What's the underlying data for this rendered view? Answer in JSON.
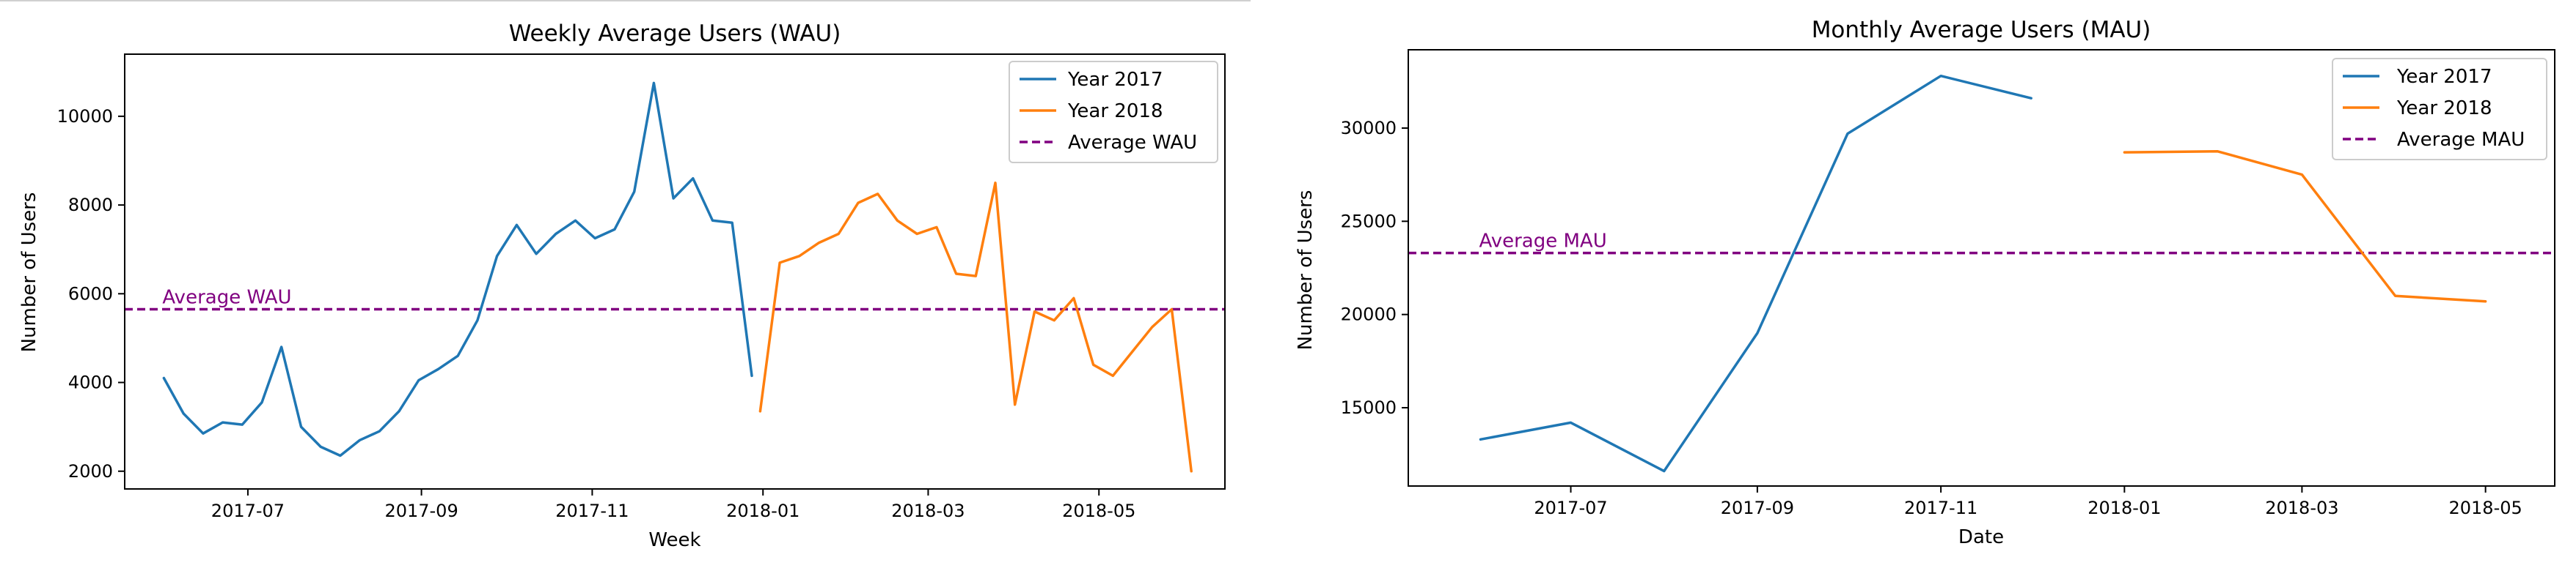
{
  "colors": {
    "year_2017": "#1f77b4",
    "year_2018": "#ff7f0e",
    "average": "#800080"
  },
  "chart_data": [
    {
      "type": "line",
      "title": "Weekly Average Users (WAU)",
      "xlabel": "Week",
      "ylabel": "Number of Users",
      "x_axis": "date",
      "xlim": [
        "2017-05-18",
        "2018-06-15"
      ],
      "ylim": [
        1600,
        11400
      ],
      "x_ticks": [
        {
          "date": "2017-07-01",
          "label": "2017-07"
        },
        {
          "date": "2017-09-01",
          "label": "2017-09"
        },
        {
          "date": "2017-11-01",
          "label": "2017-11"
        },
        {
          "date": "2018-01-01",
          "label": "2018-01"
        },
        {
          "date": "2018-03-01",
          "label": "2018-03"
        },
        {
          "date": "2018-05-01",
          "label": "2018-05"
        }
      ],
      "y_ticks": [
        2000,
        4000,
        6000,
        8000,
        10000
      ],
      "legend_position": "top-right",
      "series": [
        {
          "name": "Year 2017",
          "color": "#1f77b4",
          "x": [
            "2017-06-01",
            "2017-06-08",
            "2017-06-15",
            "2017-06-22",
            "2017-06-29",
            "2017-07-06",
            "2017-07-13",
            "2017-07-20",
            "2017-07-27",
            "2017-08-03",
            "2017-08-10",
            "2017-08-17",
            "2017-08-24",
            "2017-08-31",
            "2017-09-07",
            "2017-09-14",
            "2017-09-21",
            "2017-09-28",
            "2017-10-05",
            "2017-10-12",
            "2017-10-19",
            "2017-10-26",
            "2017-11-02",
            "2017-11-09",
            "2017-11-16",
            "2017-11-23",
            "2017-11-30",
            "2017-12-07",
            "2017-12-14",
            "2017-12-21",
            "2017-12-28"
          ],
          "values": [
            4100,
            3300,
            2850,
            3100,
            3050,
            3550,
            4800,
            3000,
            2550,
            2350,
            2700,
            2900,
            3350,
            4050,
            4300,
            4600,
            5400,
            6850,
            7550,
            6900,
            7350,
            7650,
            7250,
            7450,
            8300,
            10750,
            8150,
            8600,
            7650,
            7600,
            4150
          ]
        },
        {
          "name": "Year 2018",
          "color": "#ff7f0e",
          "x": [
            "2017-12-31",
            "2018-01-07",
            "2018-01-14",
            "2018-01-21",
            "2018-01-28",
            "2018-02-04",
            "2018-02-11",
            "2018-02-18",
            "2018-02-25",
            "2018-03-04",
            "2018-03-11",
            "2018-03-18",
            "2018-03-25",
            "2018-04-01",
            "2018-04-08",
            "2018-04-15",
            "2018-04-22",
            "2018-04-29",
            "2018-05-06",
            "2018-05-13",
            "2018-05-20",
            "2018-05-27",
            "2018-06-03"
          ],
          "values": [
            3350,
            6700,
            6850,
            7150,
            7350,
            8050,
            8250,
            7650,
            7350,
            7500,
            6450,
            6400,
            8500,
            3500,
            5600,
            5400,
            5900,
            4400,
            4150,
            4700,
            5250,
            5650,
            2000
          ]
        }
      ],
      "reference_line": {
        "name": "Average WAU",
        "value": 5650,
        "color": "#800080",
        "annotation": "Average WAU"
      }
    },
    {
      "type": "line",
      "title": "Monthly Average Users (MAU)",
      "xlabel": "Date",
      "ylabel": "Number of Users",
      "x_axis": "date",
      "xlim": [
        "2017-05-08",
        "2018-05-24"
      ],
      "ylim": [
        10800,
        34200
      ],
      "x_ticks": [
        {
          "date": "2017-07-01",
          "label": "2017-07"
        },
        {
          "date": "2017-09-01",
          "label": "2017-09"
        },
        {
          "date": "2017-11-01",
          "label": "2017-11"
        },
        {
          "date": "2018-01-01",
          "label": "2018-01"
        },
        {
          "date": "2018-03-01",
          "label": "2018-03"
        },
        {
          "date": "2018-05-01",
          "label": "2018-05"
        }
      ],
      "y_ticks": [
        15000,
        20000,
        25000,
        30000
      ],
      "legend_position": "top-right",
      "series": [
        {
          "name": "Year 2017",
          "color": "#1f77b4",
          "x": [
            "2017-06-01",
            "2017-07-01",
            "2017-08-01",
            "2017-09-01",
            "2017-10-01",
            "2017-11-01",
            "2017-12-01"
          ],
          "values": [
            13300,
            14200,
            11600,
            19000,
            29700,
            32800,
            31600
          ]
        },
        {
          "name": "Year 2018",
          "color": "#ff7f0e",
          "x": [
            "2018-01-01",
            "2018-02-01",
            "2018-03-01",
            "2018-04-01",
            "2018-05-01"
          ],
          "values": [
            28700,
            28750,
            27500,
            21000,
            20700
          ]
        }
      ],
      "reference_line": {
        "name": "Average MAU",
        "value": 23300,
        "color": "#800080",
        "annotation": "Average MAU"
      }
    }
  ]
}
